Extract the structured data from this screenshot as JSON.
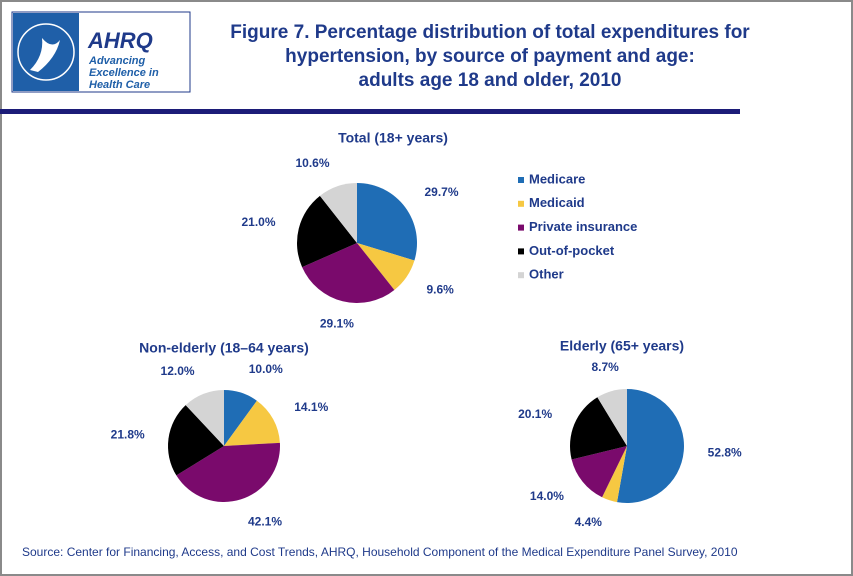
{
  "header": {
    "title": [
      "Figure 7. Percentage distribution of total expenditures for",
      "hypertension, by source of payment and age:",
      "adults age 18 and older, 2010"
    ]
  },
  "logo": {
    "name": "AHRQ",
    "tagline": [
      "Advancing",
      "Excellence in",
      "Health Care"
    ]
  },
  "legend": {
    "labels": [
      "Medicare",
      "Medicaid",
      "Private insurance",
      "Out-of-pocket",
      "Other"
    ],
    "colors": [
      "#1f6db5",
      "#f6c842",
      "#7a0a6c",
      "#000000",
      "#d4d4d4"
    ]
  },
  "chart_data": [
    {
      "type": "pie",
      "title": "Total (18+ years)",
      "values": [
        29.7,
        9.6,
        29.1,
        21,
        10.6
      ],
      "value_labels": [
        "29.7%",
        "9.6%",
        "29.1%",
        "21.0%",
        "10.6%"
      ]
    },
    {
      "type": "pie",
      "title": "Non-elderly (18–64 years)",
      "values": [
        10,
        14.1,
        42.1,
        21.8,
        12
      ],
      "value_labels": [
        "10.0%",
        "14.1%",
        "42.1%",
        "21.8%",
        "12.0%"
      ]
    },
    {
      "type": "pie",
      "title": "Elderly (65+ years)",
      "values": [
        52.8,
        4.4,
        14,
        20.1,
        8.7
      ],
      "value_labels": [
        "52.8%",
        "4.4%",
        "14.0%",
        "20.1%",
        "8.7%"
      ]
    }
  ],
  "source": "Source: Center for Financing, Access, and Cost Trends, AHRQ, Household Component of the Medical Expenditure Panel Survey, 2010"
}
